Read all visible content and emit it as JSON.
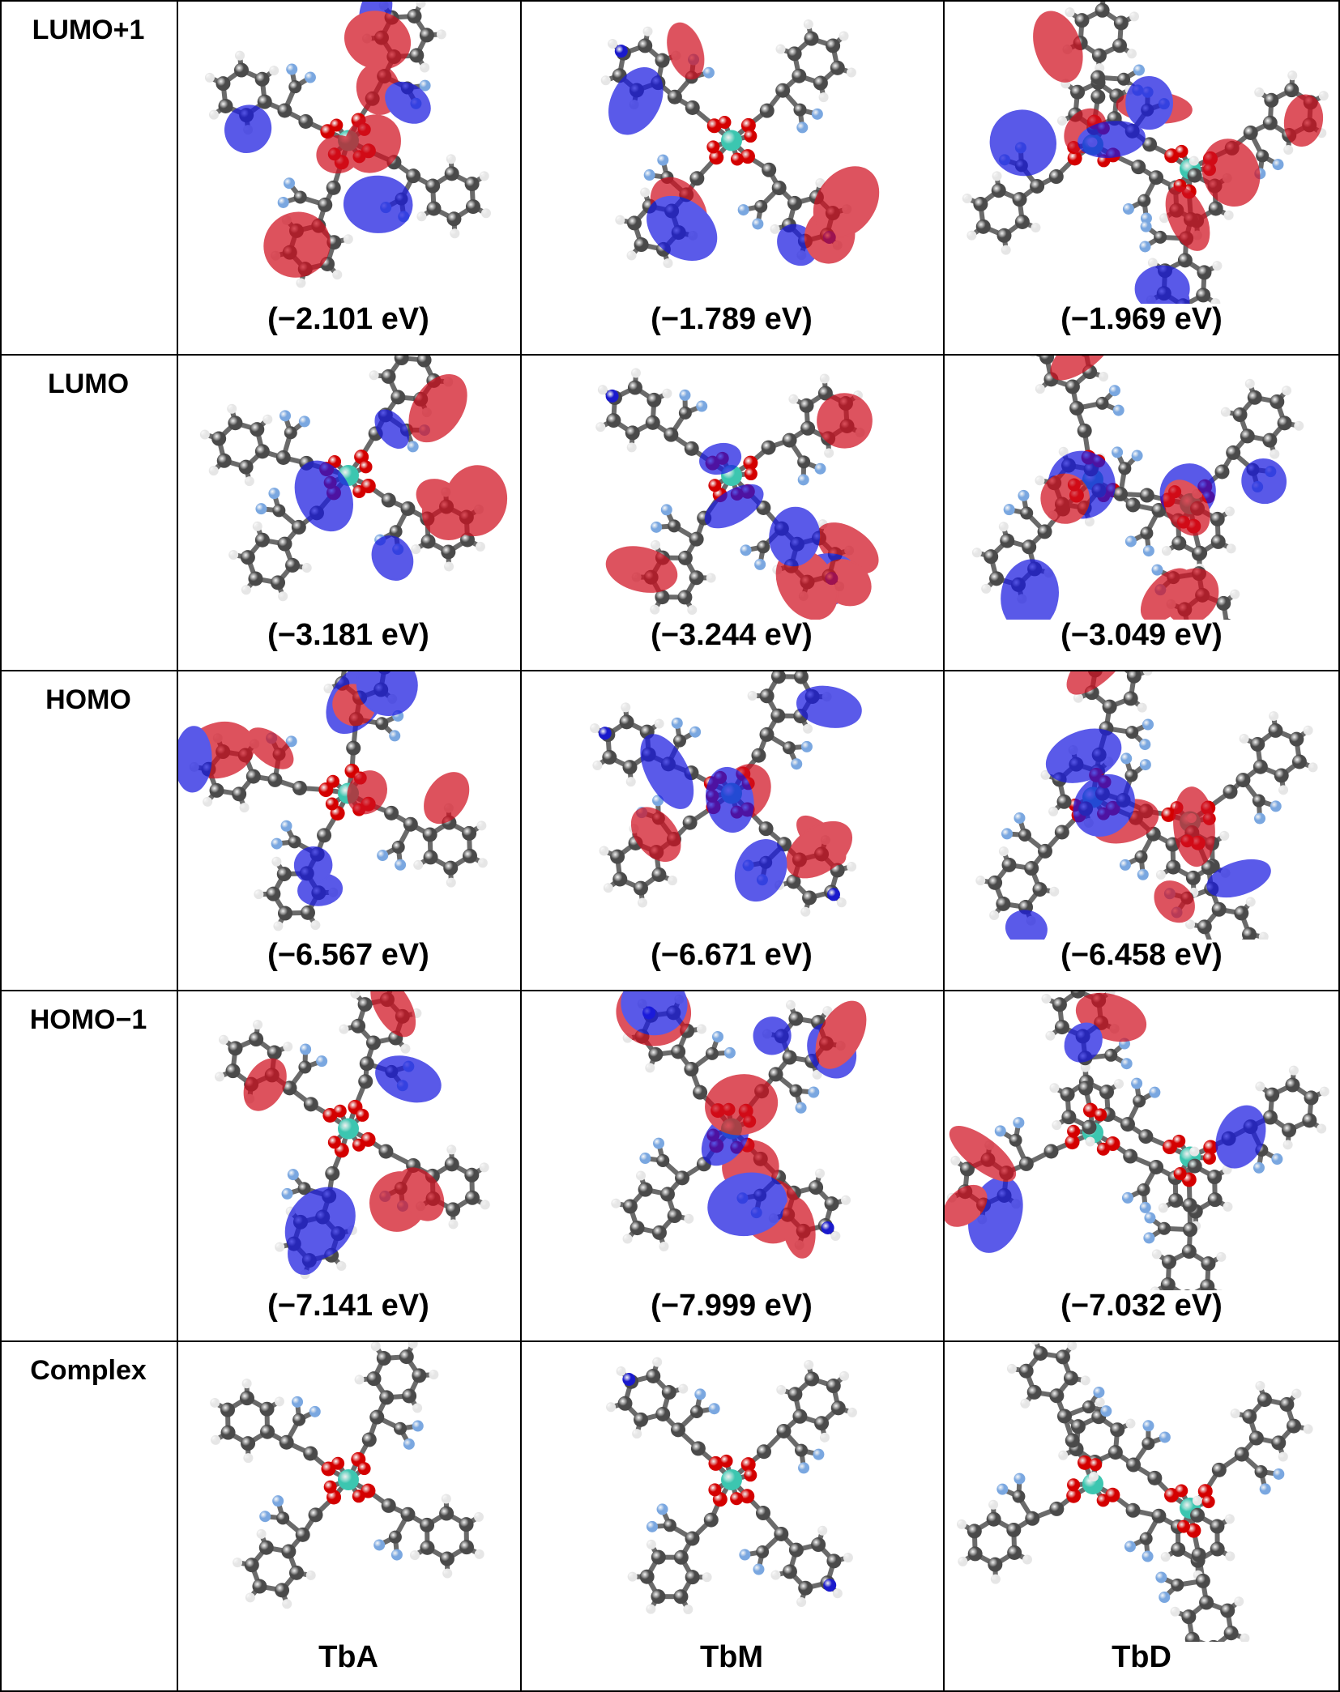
{
  "table": {
    "rows": [
      {
        "label": "LUMO+1",
        "energies": [
          "(−2.101 eV)",
          "(−1.789 eV)",
          "(−1.969 eV)"
        ]
      },
      {
        "label": "LUMO",
        "energies": [
          "(−3.181 eV)",
          "(−3.244 eV)",
          "(−3.049 eV)"
        ]
      },
      {
        "label": "HOMO",
        "energies": [
          "(−6.567 eV)",
          "(−6.671 eV)",
          "(−6.458 eV)"
        ]
      },
      {
        "label": "HOMO−1",
        "energies": [
          "(−7.141 eV)",
          "(−7.999 eV)",
          "(−7.032 eV)"
        ]
      },
      {
        "label": "Complex",
        "energies": [
          "TbA",
          "TbM",
          "TbD"
        ]
      }
    ]
  },
  "colors": {
    "carbon": "#4a4a4a",
    "hydrogen": "#e6e6e6",
    "oxygen": "#d40000",
    "fluorine": "#7aa7e0",
    "nitrogen": "#1a1acc",
    "terbium": "#3cc6b0",
    "lobe_positive": "#d01020",
    "lobe_negative": "#1a1ae0"
  }
}
